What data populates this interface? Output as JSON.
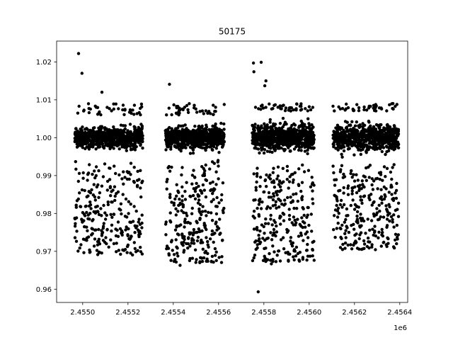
{
  "chart_data": {
    "type": "scatter",
    "title": "50175",
    "xlabel": "",
    "ylabel": "",
    "x_offset_label": "1e6",
    "xlim": [
      2454885,
      2456435
    ],
    "ylim": [
      0.9565,
      1.0255
    ],
    "x_ticks": [
      2455000,
      2455200,
      2455400,
      2455600,
      2455800,
      2456000,
      2456200,
      2456400
    ],
    "x_tick_labels": [
      "2.4550",
      "2.4552",
      "2.4554",
      "2.4556",
      "2.4558",
      "2.4560",
      "2.4562",
      "2.4564"
    ],
    "y_ticks": [
      0.96,
      0.97,
      0.98,
      0.99,
      1.0,
      1.01,
      1.02
    ],
    "y_tick_labels": [
      "0.96",
      "0.97",
      "0.98",
      "0.99",
      "1.00",
      "1.01",
      "1.02"
    ],
    "grid": false,
    "marker_color": "#000000",
    "segments": [
      {
        "x_range": [
          2454965,
          2455265
        ],
        "y_core_range": [
          0.994,
          1.006
        ],
        "y_scatter_range": [
          0.969,
          1.009
        ]
      },
      {
        "x_range": [
          2455365,
          2455625
        ],
        "y_core_range": [
          0.994,
          1.006
        ],
        "y_scatter_range": [
          0.967,
          1.009
        ]
      },
      {
        "x_range": [
          2455748,
          2456022
        ],
        "y_core_range": [
          0.993,
          1.007
        ],
        "y_scatter_range": [
          0.967,
          1.009
        ]
      },
      {
        "x_range": [
          2456105,
          2456395
        ],
        "y_core_range": [
          0.993,
          1.007
        ],
        "y_scatter_range": [
          0.97,
          1.009
        ]
      }
    ],
    "outliers": [
      {
        "x": 2454982,
        "y": 1.0222
      },
      {
        "x": 2454997,
        "y": 1.017
      },
      {
        "x": 2455085,
        "y": 1.012
      },
      {
        "x": 2455383,
        "y": 1.0141
      },
      {
        "x": 2455754,
        "y": 1.0197
      },
      {
        "x": 2455788,
        "y": 1.0199
      },
      {
        "x": 2455756,
        "y": 1.0174
      },
      {
        "x": 2455809,
        "y": 1.015
      },
      {
        "x": 2455804,
        "y": 1.0137
      },
      {
        "x": 2455775,
        "y": 0.9593
      },
      {
        "x": 2455430,
        "y": 0.9663
      },
      {
        "x": 2455833,
        "y": 0.9667
      },
      {
        "x": 2456213,
        "y": 0.9708
      },
      {
        "x": 2456370,
        "y": 1.009
      }
    ]
  }
}
